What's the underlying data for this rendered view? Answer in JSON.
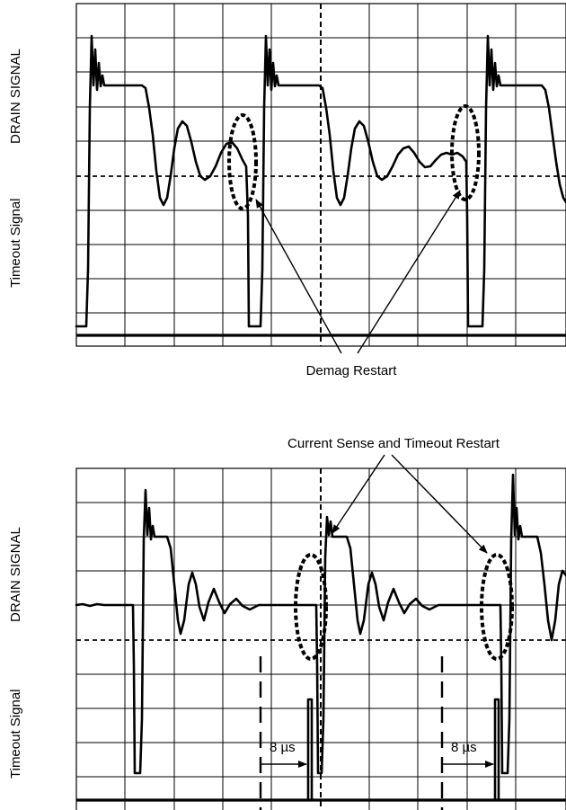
{
  "top_scope": {
    "ylabel_upper": "DRAIN SIGNAL",
    "ylabel_lower": "Timeout Signal",
    "annotation": "Demag Restart"
  },
  "bottom_scope": {
    "ylabel_upper": "DRAIN SIGNAL",
    "ylabel_lower": "Timeout Signal",
    "annotation": "Current Sense and Timeout Restart",
    "timeout_label_1": "8 µs",
    "timeout_label_2": "8 µs"
  }
}
